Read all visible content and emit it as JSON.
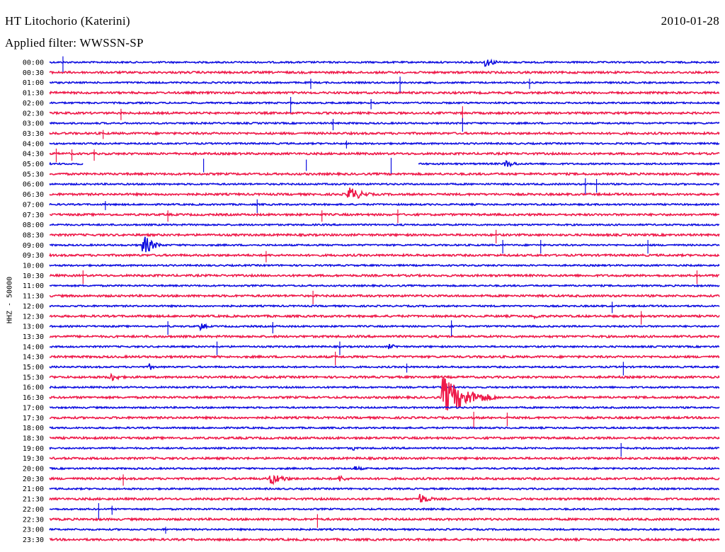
{
  "header": {
    "station": "HT Litochorio (Katerini)",
    "date": "2010-01-28",
    "filter": "Applied filter: WWSSN-SP"
  },
  "chart_data": {
    "type": "line",
    "title": "HT Litochorio (Katerini)",
    "ylabel": "HHZ - 50000",
    "xlabel": "",
    "colors": [
      "#1010e0",
      "#ee1a4a"
    ],
    "rows": [
      "00:00",
      "00:30",
      "01:00",
      "01:30",
      "02:00",
      "02:30",
      "03:00",
      "03:30",
      "04:00",
      "04:30",
      "05:00",
      "05:30",
      "06:00",
      "06:30",
      "07:00",
      "07:30",
      "08:00",
      "08:30",
      "09:00",
      "09:30",
      "10:00",
      "10:30",
      "11:00",
      "11:30",
      "12:00",
      "12:30",
      "13:00",
      "13:30",
      "14:00",
      "14:30",
      "15:00",
      "15:30",
      "16:00",
      "16:30",
      "17:00",
      "17:30",
      "18:00",
      "18:30",
      "19:00",
      "19:30",
      "20:00",
      "20:30",
      "21:00",
      "21:30",
      "22:00",
      "22:30",
      "23:00",
      "23:30"
    ],
    "gaps": [
      {
        "row": "05:00",
        "from_min": 1.5,
        "to_min": 16.5
      }
    ],
    "events": [
      {
        "row": "00:00",
        "min": 19.5,
        "amp": 7,
        "dur": 1.0
      },
      {
        "row": "05:00",
        "min": 20.4,
        "amp": 6,
        "dur": 1.0
      },
      {
        "row": "06:30",
        "min": 13.4,
        "amp": 12,
        "dur": 1.2
      },
      {
        "row": "09:00",
        "min": 4.2,
        "amp": 16,
        "dur": 0.9
      },
      {
        "row": "12:30",
        "min": 21.7,
        "amp": 5,
        "dur": 0.6
      },
      {
        "row": "13:00",
        "min": 6.8,
        "amp": 6,
        "dur": 0.5
      },
      {
        "row": "14:00",
        "min": 15.2,
        "amp": 4,
        "dur": 0.9
      },
      {
        "row": "15:00",
        "min": 4.5,
        "amp": 5,
        "dur": 0.4
      },
      {
        "row": "15:30",
        "min": 2.7,
        "amp": 7,
        "dur": 0.9
      },
      {
        "row": "16:30",
        "min": 17.6,
        "amp": 30,
        "dur": 2.4
      },
      {
        "row": "19:00",
        "min": 13.6,
        "amp": 4,
        "dur": 0.3
      },
      {
        "row": "20:00",
        "min": 13.7,
        "amp": 4,
        "dur": 0.7
      },
      {
        "row": "20:30",
        "min": 9.9,
        "amp": 9,
        "dur": 1.3
      },
      {
        "row": "20:30",
        "min": 13.0,
        "amp": 5,
        "dur": 0.8
      },
      {
        "row": "21:30",
        "min": 16.6,
        "amp": 8,
        "dur": 0.9
      }
    ],
    "spikes": [
      {
        "row": "00:00",
        "min": 0.6,
        "amp": 14
      },
      {
        "row": "01:00",
        "min": 11.7,
        "amp": 9
      },
      {
        "row": "01:00",
        "min": 15.7,
        "amp": 14
      },
      {
        "row": "01:00",
        "min": 21.5,
        "amp": 9
      },
      {
        "row": "02:00",
        "min": 14.4,
        "amp": 9
      },
      {
        "row": "02:00",
        "min": 10.8,
        "amp": 14
      },
      {
        "row": "02:30",
        "min": 3.2,
        "amp": 10
      },
      {
        "row": "02:30",
        "min": 18.5,
        "amp": 16
      },
      {
        "row": "03:00",
        "min": 12.7,
        "amp": 10
      },
      {
        "row": "03:00",
        "min": 18.5,
        "amp": 12
      },
      {
        "row": "03:30",
        "min": 2.4,
        "amp": 8
      },
      {
        "row": "04:00",
        "min": 13.3,
        "amp": 7
      },
      {
        "row": "04:30",
        "min": 0.3,
        "amp": 12
      },
      {
        "row": "04:30",
        "min": 1.0,
        "amp": 10
      },
      {
        "row": "04:30",
        "min": 2.0,
        "amp": 10
      },
      {
        "row": "05:00",
        "min": 6.9,
        "amp": 12
      },
      {
        "row": "05:00",
        "min": 11.5,
        "amp": 10
      },
      {
        "row": "05:00",
        "min": 15.3,
        "amp": 14
      },
      {
        "row": "06:00",
        "min": 24.0,
        "amp": 14
      },
      {
        "row": "06:00",
        "min": 24.5,
        "amp": 12
      },
      {
        "row": "07:00",
        "min": 2.5,
        "amp": 8
      },
      {
        "row": "07:00",
        "min": 9.3,
        "amp": 12
      },
      {
        "row": "07:30",
        "min": 5.3,
        "amp": 10
      },
      {
        "row": "07:30",
        "min": 12.2,
        "amp": 10
      },
      {
        "row": "07:30",
        "min": 15.6,
        "amp": 12
      },
      {
        "row": "08:30",
        "min": 20.0,
        "amp": 12
      },
      {
        "row": "09:00",
        "min": 20.3,
        "amp": 12
      },
      {
        "row": "09:00",
        "min": 22.0,
        "amp": 12
      },
      {
        "row": "09:00",
        "min": 26.8,
        "amp": 12
      },
      {
        "row": "09:30",
        "min": 9.7,
        "amp": 10
      },
      {
        "row": "10:30",
        "min": 1.5,
        "amp": 12
      },
      {
        "row": "10:30",
        "min": 29.0,
        "amp": 12
      },
      {
        "row": "11:30",
        "min": 11.8,
        "amp": 12
      },
      {
        "row": "12:00",
        "min": 25.2,
        "amp": 10
      },
      {
        "row": "12:30",
        "min": 26.5,
        "amp": 12
      },
      {
        "row": "13:00",
        "min": 5.3,
        "amp": 12
      },
      {
        "row": "13:00",
        "min": 10.0,
        "amp": 10
      },
      {
        "row": "13:00",
        "min": 18.0,
        "amp": 14
      },
      {
        "row": "14:00",
        "min": 7.5,
        "amp": 12
      },
      {
        "row": "14:00",
        "min": 13.0,
        "amp": 12
      },
      {
        "row": "14:30",
        "min": 12.8,
        "amp": 12
      },
      {
        "row": "15:00",
        "min": 16.0,
        "amp": 8
      },
      {
        "row": "15:00",
        "min": 25.7,
        "amp": 12
      },
      {
        "row": "17:30",
        "min": 19.0,
        "amp": 14
      },
      {
        "row": "17:30",
        "min": 20.5,
        "amp": 12
      },
      {
        "row": "19:00",
        "min": 25.6,
        "amp": 12
      },
      {
        "row": "20:30",
        "min": 3.3,
        "amp": 10
      },
      {
        "row": "22:00",
        "min": 2.2,
        "amp": 14
      },
      {
        "row": "22:00",
        "min": 2.8,
        "amp": 8
      },
      {
        "row": "22:30",
        "min": 12.0,
        "amp": 12
      },
      {
        "row": "23:00",
        "min": 5.2,
        "amp": 6
      }
    ]
  }
}
